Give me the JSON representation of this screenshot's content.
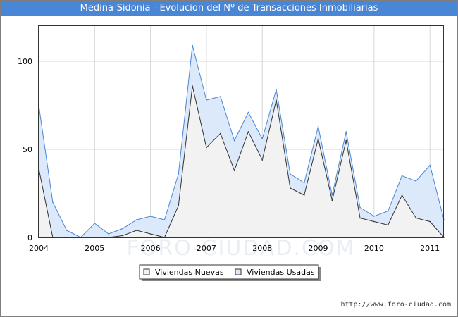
{
  "chart_data": {
    "type": "area",
    "title": "Medina-Sidonia - Evolucion del Nº de Transacciones Inmobiliarias",
    "xlabel": "",
    "ylabel": "",
    "x_ticks": [
      "2004",
      "2005",
      "2006",
      "2007",
      "2008",
      "2009",
      "2010",
      "2011"
    ],
    "y_ticks": [
      "0",
      "50",
      "100"
    ],
    "xlim": [
      2004.0,
      2011.25
    ],
    "ylim": [
      0,
      120
    ],
    "grid": true,
    "legend_position": "bottom",
    "watermark": "FORO-CIUDAD.COM",
    "x": [
      2004.0,
      2004.25,
      2004.5,
      2004.75,
      2005.0,
      2005.25,
      2005.5,
      2005.75,
      2006.0,
      2006.25,
      2006.5,
      2006.75,
      2007.0,
      2007.25,
      2007.5,
      2007.75,
      2008.0,
      2008.25,
      2008.5,
      2008.75,
      2009.0,
      2009.25,
      2009.5,
      2009.75,
      2010.0,
      2010.25,
      2010.5,
      2010.75,
      2011.0,
      2011.25
    ],
    "series": [
      {
        "name": "Viviendas Nuevas",
        "color": "#f2f2f2",
        "line": "#333333",
        "values": [
          39,
          0,
          0,
          0,
          0,
          0,
          1,
          4,
          2,
          0,
          18,
          86,
          51,
          59,
          38,
          60,
          44,
          78,
          28,
          24,
          56,
          21,
          55,
          11,
          9,
          7,
          24,
          11,
          9,
          0
        ]
      },
      {
        "name": "Viviendas Usadas",
        "color": "#dbe9fb",
        "line": "#4a86d6",
        "values": [
          36,
          20,
          4,
          0,
          8,
          2,
          4,
          6,
          10,
          10,
          18,
          23,
          27,
          21,
          17,
          11,
          12,
          6,
          8,
          7,
          7,
          3,
          5,
          6,
          3,
          8,
          11,
          21,
          32,
          10
        ]
      }
    ]
  },
  "footer": {
    "credit": "http://www.foro-ciudad.com"
  }
}
